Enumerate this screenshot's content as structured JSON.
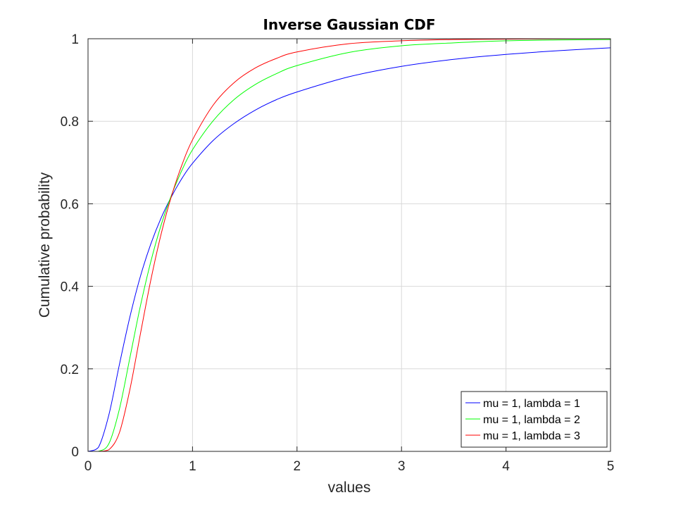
{
  "chart_data": {
    "type": "line",
    "title": "Inverse Gaussian CDF",
    "xlabel": "values",
    "ylabel": "Cumulative probability",
    "xlim": [
      0,
      5
    ],
    "ylim": [
      0,
      1
    ],
    "xticks": [
      "0",
      "1",
      "2",
      "3",
      "4",
      "5"
    ],
    "yticks": [
      "0",
      "0.2",
      "0.4",
      "0.6",
      "0.8",
      "1"
    ],
    "xtick_values": [
      0,
      1,
      2,
      3,
      4,
      5
    ],
    "ytick_values": [
      0,
      0.2,
      0.4,
      0.6,
      0.8,
      1
    ],
    "grid": true,
    "legend_position": "bottom-right",
    "x": [
      0,
      0.1,
      0.2,
      0.3,
      0.4,
      0.5,
      0.6,
      0.7,
      0.8,
      0.9,
      1.0,
      1.2,
      1.4,
      1.6,
      1.8,
      2.0,
      2.5,
      3.0,
      3.5,
      4.0,
      4.5,
      5.0
    ],
    "series": [
      {
        "name": "mu = 1, lambda = 1",
        "color": "#0000ff",
        "values": [
          0,
          0.01,
          0.089,
          0.21,
          0.325,
          0.423,
          0.502,
          0.566,
          0.618,
          0.662,
          0.698,
          0.754,
          0.795,
          0.827,
          0.852,
          0.871,
          0.908,
          0.933,
          0.95,
          0.962,
          0.971,
          0.978
        ]
      },
      {
        "name": "mu = 1, lambda = 2",
        "color": "#00ff00",
        "values": [
          0,
          0.0002,
          0.019,
          0.102,
          0.226,
          0.351,
          0.459,
          0.549,
          0.622,
          0.682,
          0.731,
          0.802,
          0.853,
          0.889,
          0.915,
          0.935,
          0.967,
          0.983,
          0.99,
          0.995,
          0.997,
          0.998
        ]
      },
      {
        "name": "mu = 1, lambda = 3",
        "color": "#ff0000",
        "values": [
          0,
          1e-05,
          0.004,
          0.045,
          0.149,
          0.283,
          0.414,
          0.527,
          0.62,
          0.695,
          0.755,
          0.84,
          0.894,
          0.929,
          0.952,
          0.968,
          0.988,
          0.995,
          0.998,
          0.999,
          0.9996,
          0.9998
        ]
      }
    ]
  }
}
